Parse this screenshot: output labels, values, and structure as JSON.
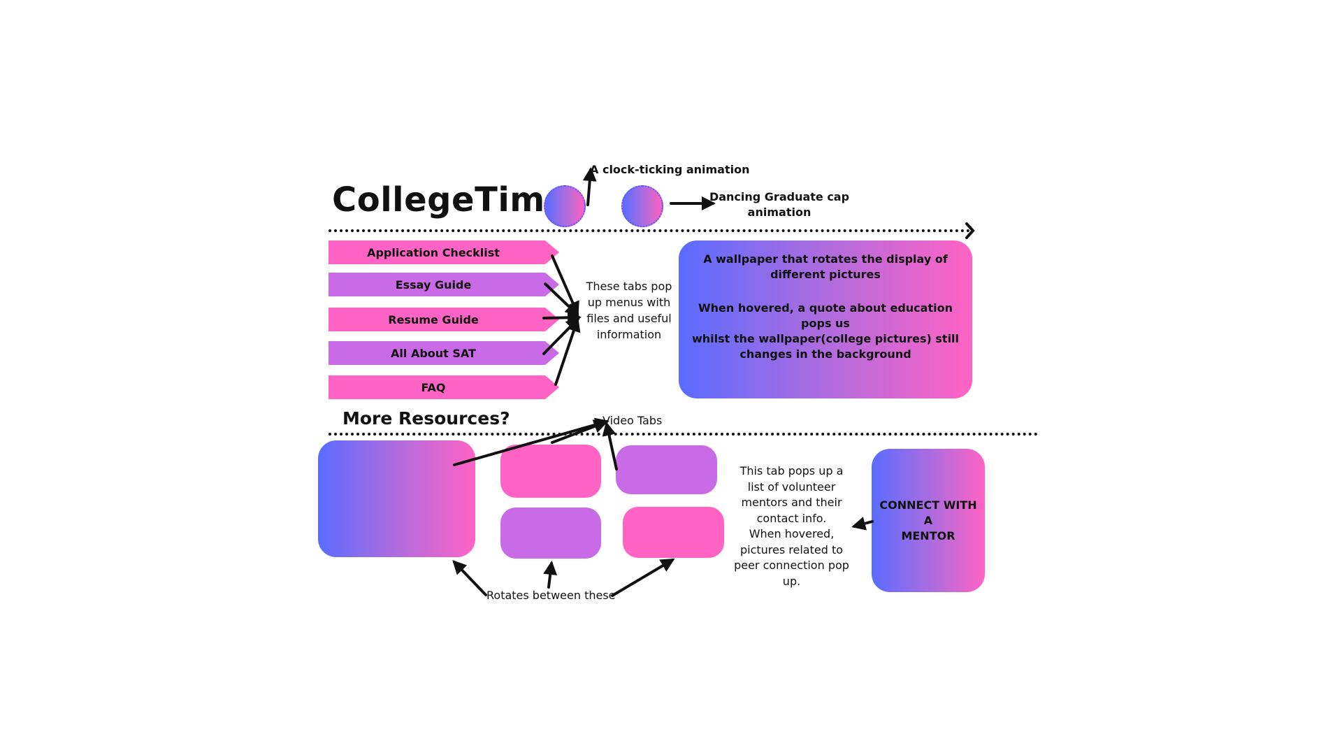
{
  "header": {
    "title": "CollegeTime",
    "clock_note": "A clock-ticking animation",
    "cap_note_line1": "Dancing Graduate cap",
    "cap_note_line2": "animation"
  },
  "tabs": {
    "items": [
      {
        "label": "Application Checklist",
        "color": "pink"
      },
      {
        "label": "Essay Guide",
        "color": "violet"
      },
      {
        "label": "Resume Guide",
        "color": "pink"
      },
      {
        "label": "All About SAT",
        "color": "violet"
      },
      {
        "label": "FAQ",
        "color": "pink"
      }
    ],
    "note_lines": [
      "These tabs pop",
      "up  menus with",
      "files and useful",
      "information"
    ]
  },
  "wallpaper": {
    "line1": "A wallpaper that rotates the  display of",
    "line2": "different pictures",
    "line3": "When hovered, a quote about education pops us",
    "line4": "whilst the wallpaper(college pictures) still",
    "line5": "changes in the background"
  },
  "resources": {
    "heading": "More Resources?",
    "video_tabs_note": "Video  Tabs",
    "rotates_note": "Rotates between these"
  },
  "mentor": {
    "button_line1": "CONNECT WITH A",
    "button_line2": "MENTOR",
    "note_lines": [
      "This tab pops up a",
      "list of volunteer",
      "mentors and their",
      "contact info.",
      "When hovered,",
      "pictures related to",
      "peer connection pop",
      "up."
    ]
  },
  "colors": {
    "pink": "#ff63c4",
    "violet": "#c96ae6",
    "blue": "#5a6cff"
  }
}
